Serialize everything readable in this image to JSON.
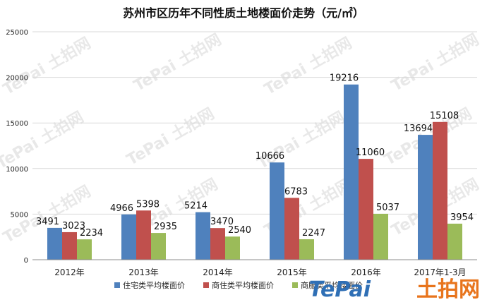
{
  "chart_data": {
    "type": "bar",
    "title": "苏州市区历年不同性质土地楼面价走势（元/㎡）",
    "categories": [
      "2012年",
      "2013年",
      "2014年",
      "2015年",
      "2016年",
      "2017年1-3月"
    ],
    "series": [
      {
        "name": "住宅类平均楼面价",
        "color": "#4f81bd",
        "values": [
          3491,
          4966,
          5214,
          10666,
          19216,
          13694
        ]
      },
      {
        "name": "商住类平均楼面价",
        "color": "#c0504d",
        "values": [
          3023,
          5398,
          3470,
          6783,
          11060,
          15108
        ]
      },
      {
        "name": "商服类平均楼面价",
        "color": "#9bbb59",
        "values": [
          2234,
          2935,
          2540,
          2247,
          5037,
          3954
        ]
      }
    ],
    "ylim": [
      0,
      25000
    ],
    "yticks": [
      0,
      5000,
      10000,
      15000,
      20000,
      25000
    ],
    "xlabel": "",
    "ylabel": "",
    "grid": true,
    "legend_position": "bottom"
  },
  "watermark": {
    "logo_text": "TePai",
    "logo_cn": "土拍网"
  }
}
